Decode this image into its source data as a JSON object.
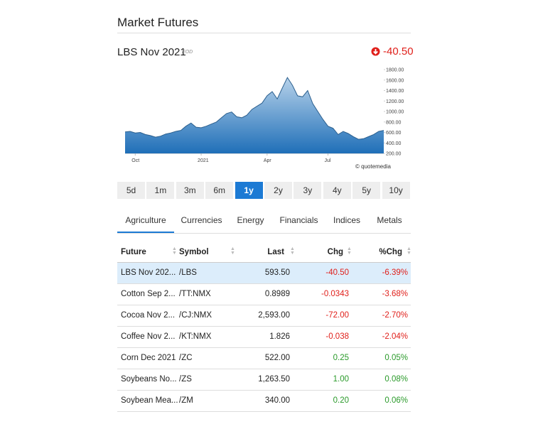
{
  "header": {
    "title": "Market Futures"
  },
  "quote": {
    "name": "LBS Nov 2021",
    "tag": "EOD",
    "change": "-40.50"
  },
  "chart_data": {
    "type": "area",
    "color": "#1f6fb8",
    "line_color": "#2b5f8e",
    "grid": false,
    "credit": "© quotemedia",
    "categories": [
      null,
      null,
      "Oct",
      null,
      null,
      null,
      null,
      null,
      null,
      null,
      null,
      null,
      null,
      null,
      null,
      "2021",
      null,
      null,
      null,
      null,
      null,
      null,
      null,
      null,
      null,
      null,
      null,
      null,
      "Apr",
      null,
      null,
      null,
      null,
      null,
      null,
      null,
      null,
      null,
      null,
      null,
      "Jul",
      null,
      null,
      null,
      null,
      null,
      null,
      null,
      null,
      null,
      null,
      null
    ],
    "values": [
      610,
      620,
      590,
      600,
      560,
      540,
      510,
      530,
      570,
      590,
      620,
      640,
      720,
      780,
      700,
      690,
      720,
      760,
      800,
      880,
      960,
      990,
      900,
      880,
      930,
      1040,
      1100,
      1160,
      1300,
      1380,
      1240,
      1450,
      1650,
      1500,
      1300,
      1280,
      1400,
      1150,
      1000,
      850,
      720,
      680,
      560,
      620,
      580,
      520,
      470,
      480,
      520,
      560,
      620,
      640
    ],
    "ylim": [
      200,
      1800
    ],
    "yticks": [
      {
        "value": 200,
        "label": "200.00"
      },
      {
        "value": 400,
        "label": "400.00"
      },
      {
        "value": 600,
        "label": "600.00"
      },
      {
        "value": 800,
        "label": "800.00"
      },
      {
        "value": 1000,
        "label": "1000.00"
      },
      {
        "value": 1200,
        "label": "1200.00"
      },
      {
        "value": 1400,
        "label": "1400.00"
      },
      {
        "value": 1600,
        "label": "1600.00"
      },
      {
        "value": 1800,
        "label": "1800.00"
      }
    ]
  },
  "periods": [
    "5d",
    "1m",
    "3m",
    "6m",
    "1y",
    "2y",
    "3y",
    "4y",
    "5y",
    "10y"
  ],
  "active_period": "1y",
  "tabs": [
    "Agriculture",
    "Currencies",
    "Energy",
    "Financials",
    "Indices",
    "Metals"
  ],
  "active_tab": "Agriculture",
  "table": {
    "columns": [
      "Future",
      "Symbol",
      "Last",
      "Chg",
      "%Chg"
    ],
    "rows": [
      [
        "LBS Nov 202...",
        "/LBS",
        "593.50",
        "-40.50",
        "-6.39%"
      ],
      [
        "Cotton Sep 2...",
        "/TT:NMX",
        "0.8989",
        "-0.0343",
        "-3.68%"
      ],
      [
        "Cocoa Nov 2...",
        "/CJ:NMX",
        "2,593.00",
        "-72.00",
        "-2.70%"
      ],
      [
        "Coffee Nov 2...",
        "/KT:NMX",
        "1.826",
        "-0.038",
        "-2.04%"
      ],
      [
        "Corn Dec 2021",
        "/ZC",
        "522.00",
        "0.25",
        "0.05%"
      ],
      [
        "Soybeans No...",
        "/ZS",
        "1,263.50",
        "1.00",
        "0.08%"
      ],
      [
        "Soybean Mea...",
        "/ZM",
        "340.00",
        "0.20",
        "0.06%"
      ]
    ]
  }
}
